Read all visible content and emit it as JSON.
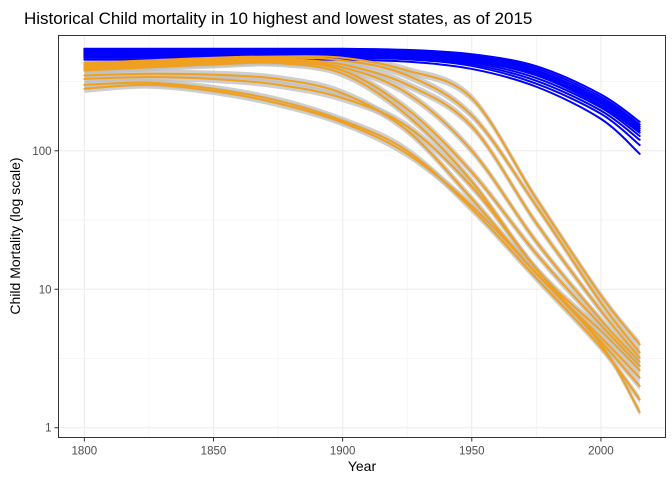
{
  "chart_data": {
    "type": "line",
    "title": "Historical Child mortality in 10 highest and lowest states, as of 2015",
    "xlabel": "Year",
    "ylabel": "Child Mortality (log scale)",
    "xlim": [
      1790,
      2025
    ],
    "ylim": [
      0.85,
      680
    ],
    "y_scale": "log",
    "x_ticks": [
      1800,
      1850,
      1900,
      1950,
      2000
    ],
    "y_ticks": [
      1,
      10,
      100
    ],
    "grid": true,
    "legend": "none",
    "colors": {
      "highest": "#0000ff",
      "lowest": "#f0a020",
      "ribbon": "#bebebe"
    },
    "x": [
      1800,
      1825,
      1850,
      1875,
      1900,
      1925,
      1950,
      1975,
      2000,
      2015
    ],
    "series": [
      {
        "group": "highest",
        "values": [
          455,
          455,
          455,
          455,
          455,
          440,
          390,
          290,
          170,
          95
        ]
      },
      {
        "group": "highest",
        "values": [
          470,
          470,
          470,
          470,
          470,
          458,
          410,
          305,
          185,
          110
        ]
      },
      {
        "group": "highest",
        "values": [
          480,
          480,
          480,
          480,
          480,
          470,
          422,
          320,
          195,
          120
        ]
      },
      {
        "group": "highest",
        "values": [
          490,
          490,
          490,
          490,
          490,
          480,
          435,
          335,
          205,
          128
        ]
      },
      {
        "group": "highest",
        "values": [
          500,
          500,
          500,
          500,
          500,
          490,
          445,
          350,
          212,
          135
        ]
      },
      {
        "group": "highest",
        "values": [
          510,
          510,
          510,
          510,
          510,
          500,
          455,
          360,
          220,
          140
        ]
      },
      {
        "group": "highest",
        "values": [
          520,
          520,
          520,
          520,
          520,
          510,
          468,
          372,
          228,
          145
        ]
      },
      {
        "group": "highest",
        "values": [
          528,
          528,
          528,
          528,
          528,
          520,
          478,
          382,
          236,
          150
        ]
      },
      {
        "group": "highest",
        "values": [
          535,
          535,
          535,
          535,
          535,
          528,
          488,
          395,
          245,
          155
        ]
      },
      {
        "group": "highest",
        "values": [
          545,
          545,
          545,
          545,
          545,
          535,
          498,
          408,
          255,
          162
        ]
      },
      {
        "group": "lowest",
        "values": [
          280,
          300,
          270,
          220,
          160,
          95,
          40,
          13,
          4.0,
          1.3
        ]
      },
      {
        "group": "lowest",
        "values": [
          300,
          310,
          280,
          230,
          165,
          100,
          38,
          12,
          3.8,
          1.6
        ]
      },
      {
        "group": "lowest",
        "values": [
          330,
          340,
          330,
          300,
          240,
          150,
          55,
          14,
          4.2,
          2.0
        ]
      },
      {
        "group": "lowest",
        "values": [
          350,
          360,
          355,
          330,
          260,
          140,
          45,
          13,
          4.5,
          2.3
        ]
      },
      {
        "group": "lowest",
        "values": [
          380,
          400,
          420,
          430,
          360,
          180,
          60,
          14,
          5.0,
          2.6
        ]
      },
      {
        "group": "lowest",
        "values": [
          390,
          410,
          430,
          440,
          380,
          200,
          70,
          18,
          5.5,
          2.8
        ]
      },
      {
        "group": "lowest",
        "values": [
          400,
          420,
          440,
          450,
          400,
          260,
          100,
          22,
          6.0,
          3.0
        ]
      },
      {
        "group": "lowest",
        "values": [
          410,
          430,
          450,
          460,
          420,
          300,
          150,
          30,
          7.0,
          3.2
        ]
      },
      {
        "group": "lowest",
        "values": [
          420,
          440,
          460,
          470,
          450,
          350,
          180,
          40,
          8.0,
          3.5
        ]
      },
      {
        "group": "lowest",
        "values": [
          430,
          450,
          470,
          480,
          470,
          380,
          240,
          45,
          9.0,
          4.0
        ]
      }
    ]
  }
}
